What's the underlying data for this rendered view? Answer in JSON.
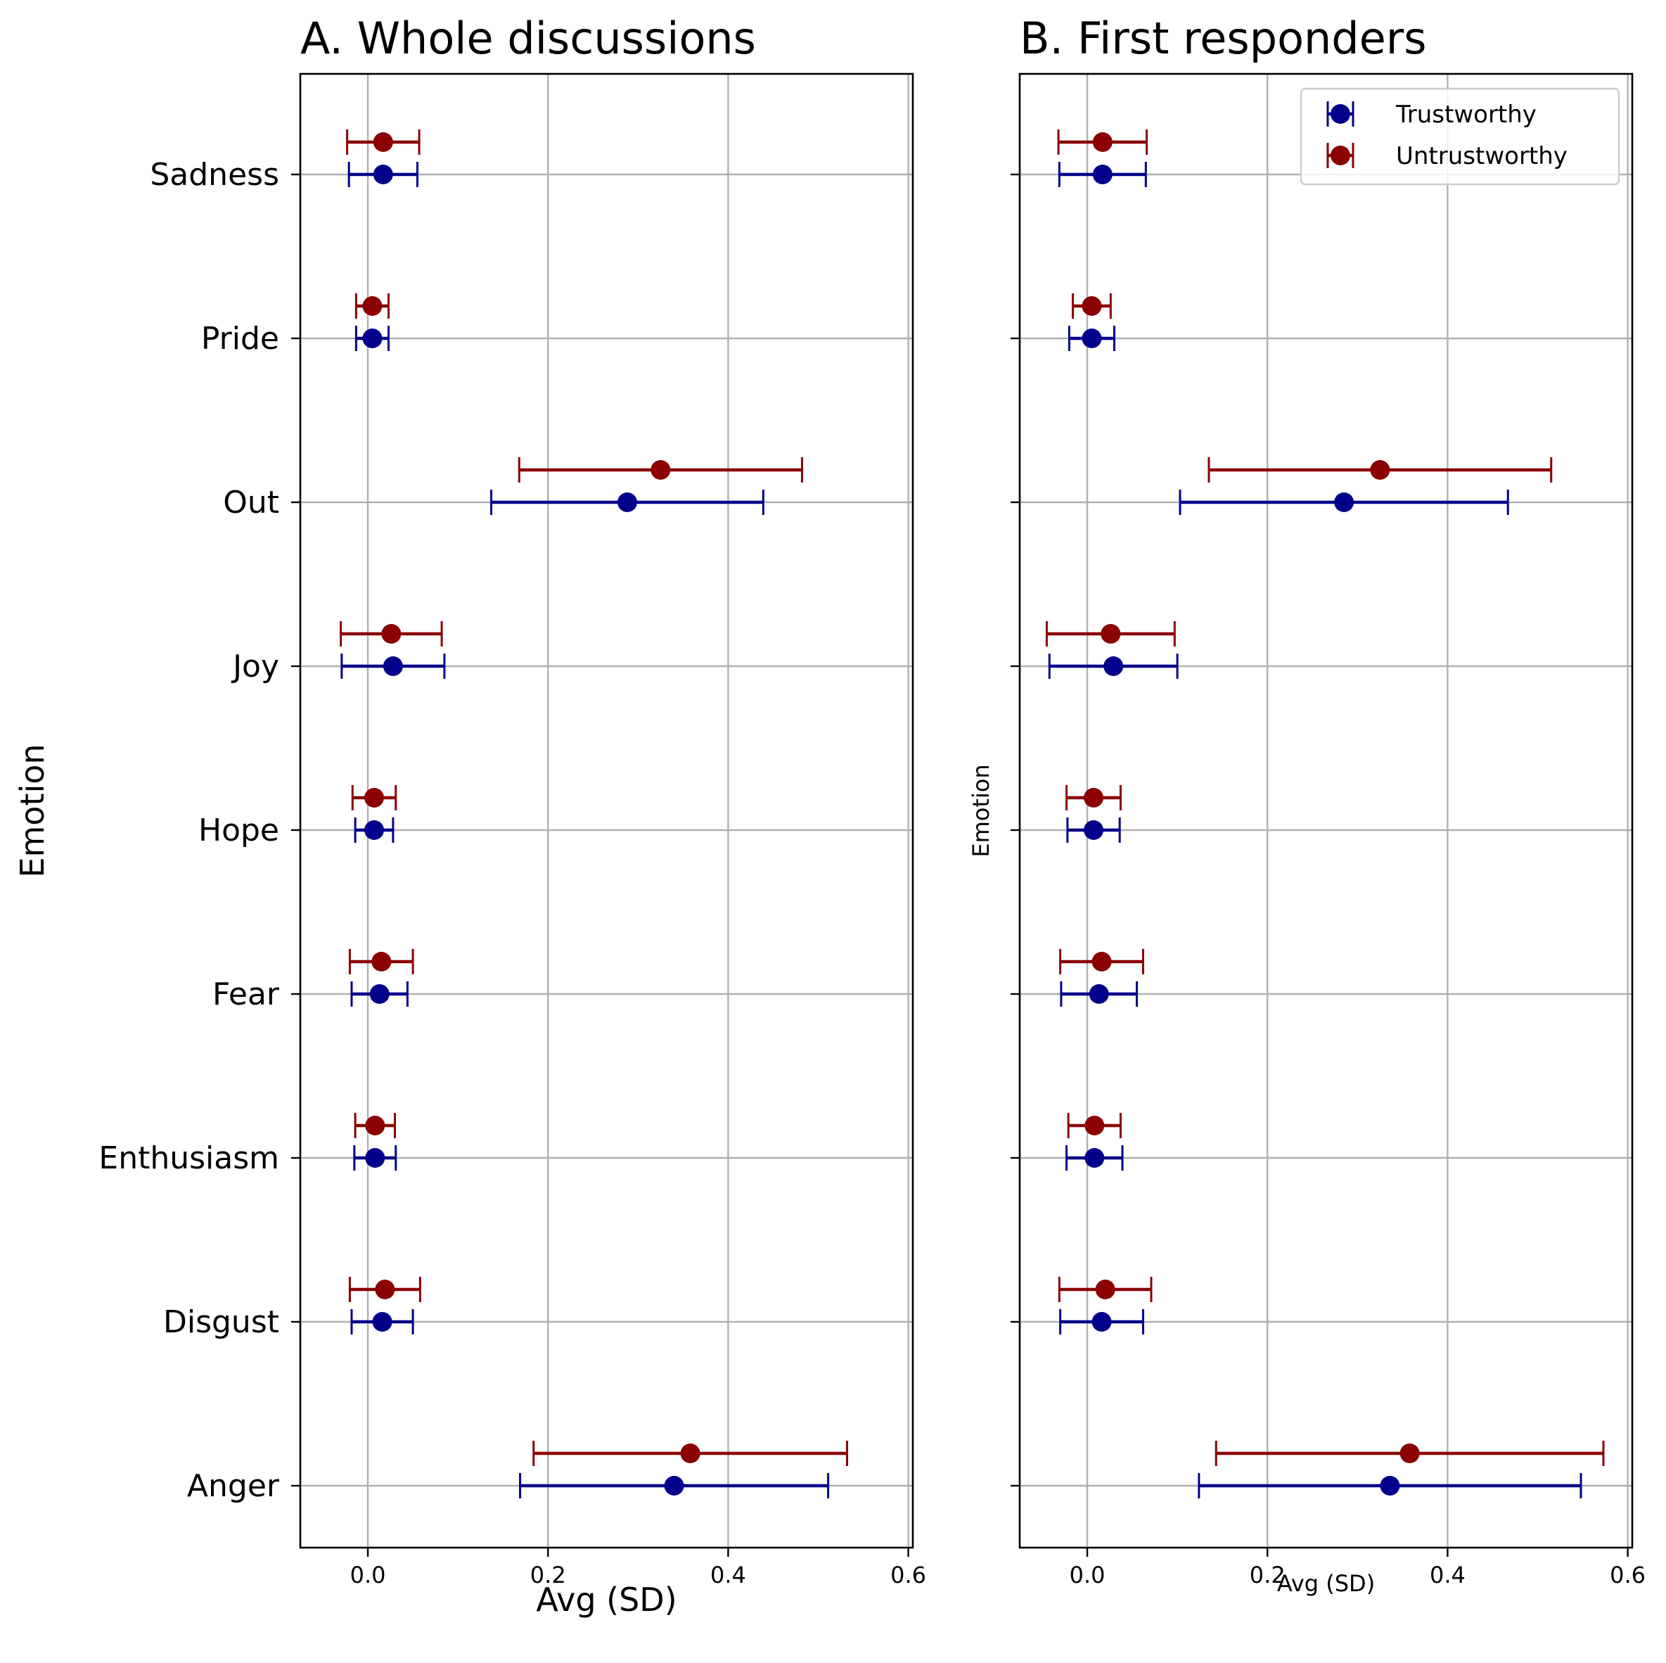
{
  "chart_data": [
    {
      "type": "errorbar",
      "title": "A. Whole discussions",
      "xlabel": "Avg (SD)",
      "ylabel": "Emotion",
      "xlim": [
        -0.075,
        0.605
      ],
      "xticks": [
        0.0,
        0.2,
        0.4,
        0.6
      ],
      "xtick_labels": [
        "0.0",
        "0.2",
        "0.4",
        "0.6"
      ],
      "categories": [
        "Anger",
        "Disgust",
        "Enthusiasm",
        "Fear",
        "Hope",
        "Joy",
        "Out",
        "Pride",
        "Sadness"
      ],
      "grid": true,
      "series": [
        {
          "name": "Trustworthy",
          "color": "#00008b",
          "values": [
            0.34,
            0.016,
            0.008,
            0.013,
            0.007,
            0.028,
            0.288,
            0.005,
            0.017
          ],
          "errors": [
            0.171,
            0.034,
            0.023,
            0.031,
            0.021,
            0.057,
            0.151,
            0.018,
            0.038
          ]
        },
        {
          "name": "Untrustworthy",
          "color": "#8b0000",
          "values": [
            0.358,
            0.019,
            0.008,
            0.015,
            0.007,
            0.026,
            0.325,
            0.005,
            0.017
          ],
          "errors": [
            0.174,
            0.039,
            0.022,
            0.035,
            0.024,
            0.056,
            0.157,
            0.018,
            0.04
          ]
        }
      ]
    },
    {
      "type": "errorbar",
      "title": "B. First responders",
      "xlabel": "Avg (SD)",
      "ylabel": "Emotion",
      "xlim": [
        -0.075,
        0.605
      ],
      "xticks": [
        0.0,
        0.2,
        0.4,
        0.6
      ],
      "xtick_labels": [
        "0.0",
        "0.2",
        "0.4",
        "0.6"
      ],
      "categories": [
        "Anger",
        "Disgust",
        "Enthusiasm",
        "Fear",
        "Hope",
        "Joy",
        "Out",
        "Pride",
        "Sadness"
      ],
      "grid": true,
      "legend": {
        "position": "top-right",
        "entries": [
          "Trustworthy",
          "Untrustworthy"
        ]
      },
      "series": [
        {
          "name": "Trustworthy",
          "color": "#00008b",
          "values": [
            0.336,
            0.016,
            0.008,
            0.013,
            0.007,
            0.029,
            0.285,
            0.005,
            0.017
          ],
          "errors": [
            0.212,
            0.046,
            0.031,
            0.042,
            0.029,
            0.071,
            0.182,
            0.025,
            0.048
          ]
        },
        {
          "name": "Untrustworthy",
          "color": "#8b0000",
          "values": [
            0.358,
            0.02,
            0.008,
            0.016,
            0.007,
            0.026,
            0.325,
            0.005,
            0.017
          ],
          "errors": [
            0.215,
            0.051,
            0.029,
            0.046,
            0.03,
            0.071,
            0.19,
            0.021,
            0.049
          ]
        }
      ]
    }
  ]
}
